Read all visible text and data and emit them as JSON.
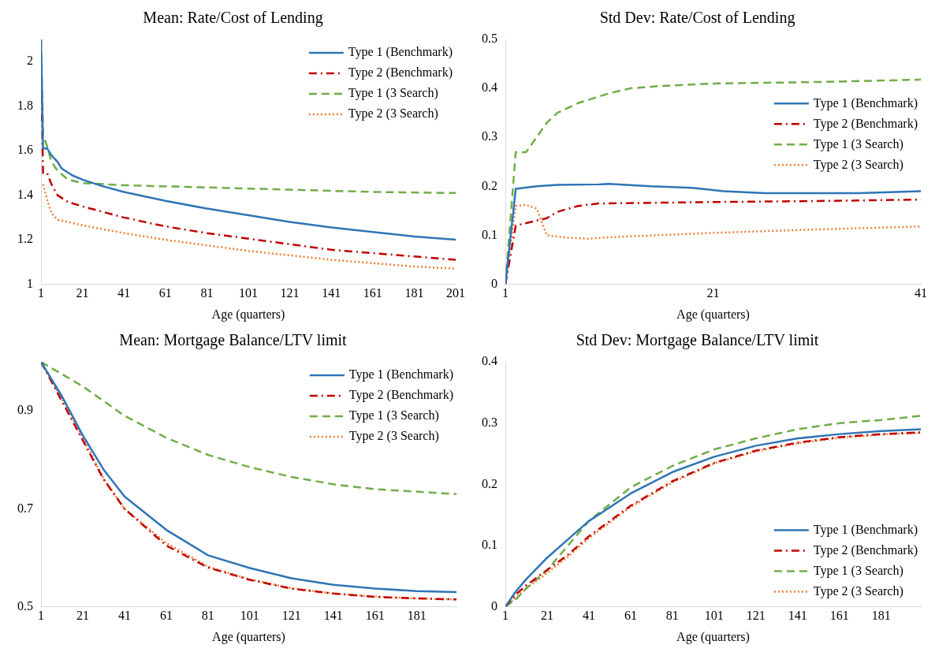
{
  "chart_data": [
    {
      "type": "line",
      "title": "Mean: Rate/Cost of Lending",
      "xlabel": "Age (quarters)",
      "xlim": [
        1,
        201
      ],
      "xticks": [
        1,
        21,
        41,
        61,
        81,
        101,
        121,
        141,
        161,
        181,
        201
      ],
      "ylim": [
        1,
        2.1
      ],
      "yticks": [
        1,
        1.2,
        1.4,
        1.6,
        1.8,
        2
      ],
      "grid": false,
      "legend": "top right",
      "series": [
        {
          "name": "Type 1 (Benchmark)",
          "color": "#2e75b6",
          "line_style": "solid",
          "x": [
            1,
            2,
            4,
            6,
            9,
            11,
            16,
            21,
            31,
            41,
            61,
            81,
            101,
            121,
            141,
            161,
            181,
            201
          ],
          "values": [
            2.1,
            1.61,
            1.61,
            1.58,
            1.55,
            1.52,
            1.49,
            1.47,
            1.44,
            1.415,
            1.375,
            1.34,
            1.31,
            1.28,
            1.255,
            1.235,
            1.215,
            1.2
          ]
        },
        {
          "name": "Type 2 (Benchmark)",
          "color": "#c00000",
          "line_style": "dashdot",
          "x": [
            1,
            2,
            4,
            6,
            9,
            14,
            21,
            41,
            61,
            81,
            101,
            121,
            141,
            161,
            181,
            201
          ],
          "values": [
            2.0,
            1.5,
            1.5,
            1.45,
            1.4,
            1.37,
            1.35,
            1.3,
            1.26,
            1.23,
            1.205,
            1.18,
            1.155,
            1.14,
            1.125,
            1.11
          ]
        },
        {
          "name": "Type 1 (3 Search)",
          "color": "#70ad47",
          "line_style": "dashed",
          "x": [
            1,
            2,
            4,
            6,
            9,
            14,
            21,
            41,
            81,
            121,
            161,
            201
          ],
          "values": [
            2.1,
            1.67,
            1.62,
            1.55,
            1.51,
            1.47,
            1.455,
            1.445,
            1.435,
            1.425,
            1.415,
            1.41
          ]
        },
        {
          "name": "Type 2 (3 Search)",
          "color": "#ed7d31",
          "line_style": "dotted",
          "x": [
            2,
            4,
            6,
            9,
            14,
            21,
            41,
            61,
            81,
            101,
            121,
            141,
            161,
            181,
            201
          ],
          "values": [
            1.45,
            1.38,
            1.32,
            1.29,
            1.28,
            1.265,
            1.23,
            1.2,
            1.175,
            1.15,
            1.13,
            1.11,
            1.095,
            1.08,
            1.07
          ]
        }
      ]
    },
    {
      "type": "line",
      "title": "Std Dev: Rate/Cost of Lending",
      "xlabel": "Age (quarters)",
      "xlim": [
        1,
        41
      ],
      "xticks": [
        1,
        21,
        41
      ],
      "ylim": [
        0,
        0.5
      ],
      "yticks": [
        0,
        0.1,
        0.2,
        0.3,
        0.4,
        0.5
      ],
      "grid": false,
      "legend": "right",
      "series": [
        {
          "name": "Type 1 (Benchmark)",
          "color": "#2e75b6",
          "line_style": "solid",
          "x": [
            1,
            2,
            4,
            6,
            10,
            11,
            15,
            19,
            22,
            26,
            30,
            35,
            38,
            41
          ],
          "values": [
            0,
            0.195,
            0.2,
            0.203,
            0.204,
            0.205,
            0.2,
            0.197,
            0.19,
            0.186,
            0.186,
            0.186,
            0.188,
            0.19
          ]
        },
        {
          "name": "Type 2 (Benchmark)",
          "color": "#c00000",
          "line_style": "dashdot",
          "x": [
            1,
            2,
            4,
            5,
            6,
            8,
            10,
            21,
            31,
            41
          ],
          "values": [
            0,
            0.12,
            0.13,
            0.135,
            0.148,
            0.16,
            0.165,
            0.168,
            0.17,
            0.173
          ]
        },
        {
          "name": "Type 1 (3 Search)",
          "color": "#70ad47",
          "line_style": "dashed",
          "x": [
            1,
            2,
            3,
            4,
            5,
            6,
            8,
            11,
            13,
            16,
            21,
            31,
            41
          ],
          "values": [
            0,
            0.27,
            0.27,
            0.3,
            0.33,
            0.35,
            0.37,
            0.39,
            0.4,
            0.405,
            0.41,
            0.413,
            0.418
          ]
        },
        {
          "name": "Type 2 (3 Search)",
          "color": "#ed7d31",
          "line_style": "dotted",
          "x": [
            1,
            2,
            3,
            4,
            5,
            7,
            9,
            11,
            21,
            31,
            41
          ],
          "values": [
            0,
            0.16,
            0.162,
            0.155,
            0.1,
            0.095,
            0.093,
            0.096,
            0.105,
            0.112,
            0.118
          ]
        }
      ]
    },
    {
      "type": "line",
      "title": "Mean: Mortgage Balance/LTV limit",
      "xlabel": "Age (quarters)",
      "xlim": [
        1,
        200
      ],
      "xticks": [
        1,
        21,
        41,
        61,
        81,
        101,
        121,
        141,
        161,
        181
      ],
      "ylim": [
        0.5,
        1
      ],
      "yticks": [
        0.5,
        0.7,
        0.9
      ],
      "grid": false,
      "legend": "top right",
      "series": [
        {
          "name": "Type 1 (Benchmark)",
          "color": "#2e75b6",
          "line_style": "solid",
          "x": [
            1,
            11,
            21,
            31,
            41,
            61,
            81,
            101,
            121,
            141,
            161,
            181,
            200
          ],
          "values": [
            1,
            0.93,
            0.85,
            0.78,
            0.725,
            0.657,
            0.605,
            0.579,
            0.558,
            0.545,
            0.537,
            0.532,
            0.53
          ]
        },
        {
          "name": "Type 2 (Benchmark)",
          "color": "#c00000",
          "line_style": "dashdot",
          "x": [
            1,
            11,
            21,
            31,
            41,
            61,
            81,
            101,
            121,
            141,
            161,
            181,
            200
          ],
          "values": [
            1,
            0.92,
            0.84,
            0.76,
            0.7,
            0.625,
            0.58,
            0.555,
            0.537,
            0.527,
            0.52,
            0.517,
            0.515
          ]
        },
        {
          "name": "Type 1 (3 Search)",
          "color": "#70ad47",
          "line_style": "dashed",
          "x": [
            1,
            21,
            41,
            61,
            81,
            101,
            121,
            141,
            161,
            181,
            200
          ],
          "values": [
            1,
            0.95,
            0.89,
            0.845,
            0.81,
            0.785,
            0.765,
            0.75,
            0.74,
            0.735,
            0.73
          ]
        },
        {
          "name": "Type 2 (3 Search)",
          "color": "#ed7d31",
          "line_style": "dotted",
          "x": [
            1,
            11,
            21,
            31,
            41,
            61,
            81,
            101,
            121,
            141,
            161,
            181,
            200
          ],
          "values": [
            1,
            0.925,
            0.845,
            0.762,
            0.7,
            0.63,
            0.582,
            0.556,
            0.538,
            0.527,
            0.521,
            0.517,
            0.515
          ]
        }
      ]
    },
    {
      "type": "line",
      "title": "Std Dev: Mortgage Balance/LTV limit",
      "xlabel": "Age (quarters)",
      "xlim": [
        1,
        200
      ],
      "xticks": [
        1,
        21,
        41,
        61,
        81,
        101,
        121,
        141,
        161,
        181
      ],
      "ylim": [
        0,
        0.4
      ],
      "yticks": [
        0,
        0.1,
        0.2,
        0.3,
        0.4
      ],
      "grid": false,
      "legend": "bottom right",
      "series": [
        {
          "name": "Type 1 (Benchmark)",
          "color": "#2e75b6",
          "line_style": "solid",
          "x": [
            1,
            6,
            11,
            21,
            31,
            41,
            61,
            81,
            101,
            121,
            141,
            161,
            181,
            200
          ],
          "values": [
            0,
            0.025,
            0.045,
            0.08,
            0.11,
            0.14,
            0.185,
            0.22,
            0.245,
            0.263,
            0.275,
            0.282,
            0.287,
            0.29
          ]
        },
        {
          "name": "Type 2 (Benchmark)",
          "color": "#c00000",
          "line_style": "dashdot",
          "x": [
            1,
            6,
            11,
            21,
            31,
            41,
            61,
            81,
            101,
            121,
            141,
            161,
            181,
            200
          ],
          "values": [
            0,
            0.02,
            0.035,
            0.06,
            0.085,
            0.115,
            0.165,
            0.205,
            0.235,
            0.255,
            0.268,
            0.277,
            0.282,
            0.285
          ]
        },
        {
          "name": "Type 1 (3 Search)",
          "color": "#70ad47",
          "line_style": "dashed",
          "x": [
            1,
            6,
            11,
            21,
            31,
            41,
            61,
            81,
            101,
            121,
            141,
            161,
            181,
            200
          ],
          "values": [
            0,
            0.012,
            0.03,
            0.06,
            0.1,
            0.14,
            0.195,
            0.23,
            0.257,
            0.275,
            0.29,
            0.3,
            0.305,
            0.312
          ]
        },
        {
          "name": "Type 2 (3 Search)",
          "color": "#ed7d31",
          "line_style": "dotted",
          "x": [
            1,
            11,
            21,
            31,
            41,
            61,
            81,
            101,
            121,
            141,
            161,
            181,
            200
          ],
          "values": [
            0,
            0.03,
            0.055,
            0.082,
            0.112,
            0.163,
            0.203,
            0.234,
            0.254,
            0.267,
            0.276,
            0.281,
            0.284
          ]
        }
      ]
    }
  ]
}
